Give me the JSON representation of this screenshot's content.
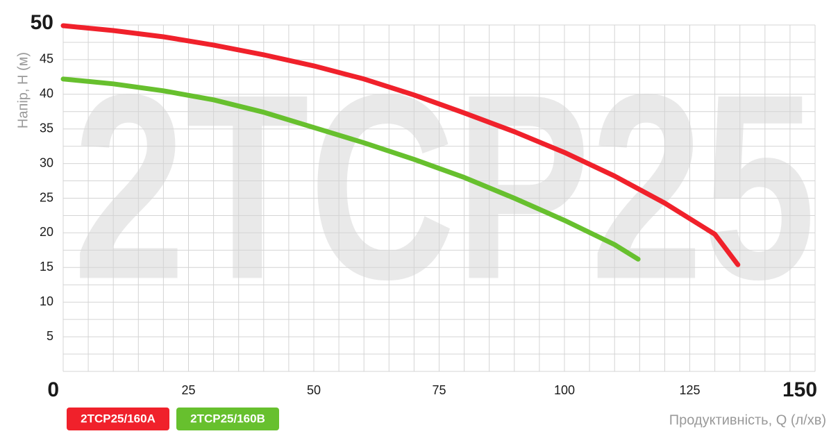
{
  "chart_data": {
    "type": "line",
    "watermark": "2TCP25",
    "xlabel": "Продуктивність, Q (л/хв)",
    "ylabel": "Напір, H (м)",
    "xlim": [
      0,
      150
    ],
    "ylim": [
      0,
      50
    ],
    "xticks": [
      0,
      25,
      50,
      75,
      100,
      125,
      150
    ],
    "yticks": [
      5,
      10,
      15,
      20,
      25,
      30,
      35,
      40,
      45,
      50
    ],
    "xgrid": [
      0,
      5,
      10,
      15,
      20,
      25,
      30,
      35,
      40,
      45,
      50,
      55,
      60,
      65,
      70,
      75,
      80,
      85,
      90,
      95,
      100,
      105,
      110,
      115,
      120,
      125,
      130,
      135,
      140,
      145,
      150
    ],
    "ygrid": [
      0,
      2.5,
      5,
      7.5,
      10,
      12.5,
      15,
      17.5,
      20,
      22.5,
      25,
      27.5,
      30,
      32.5,
      35,
      37.5,
      40,
      42.5,
      45,
      47.5,
      50
    ],
    "grid": true,
    "series": [
      {
        "name": "2TCP25/160A",
        "color": "#f0212b",
        "x": [
          0,
          10,
          20,
          30,
          40,
          50,
          60,
          70,
          80,
          90,
          100,
          110,
          120,
          130,
          134.6
        ],
        "values": [
          49.9,
          49.2,
          48.3,
          47.1,
          45.7,
          44.1,
          42.2,
          39.9,
          37.3,
          34.6,
          31.6,
          28.2,
          24.3,
          19.8,
          15.4
        ]
      },
      {
        "name": "2TCP25/160B",
        "color": "#67c02e",
        "x": [
          0,
          10,
          20,
          30,
          40,
          50,
          60,
          70,
          80,
          90,
          100,
          110,
          114.7
        ],
        "values": [
          42.2,
          41.5,
          40.5,
          39.2,
          37.4,
          35.2,
          33.0,
          30.6,
          28.0,
          25.0,
          21.8,
          18.3,
          16.2
        ]
      }
    ]
  }
}
